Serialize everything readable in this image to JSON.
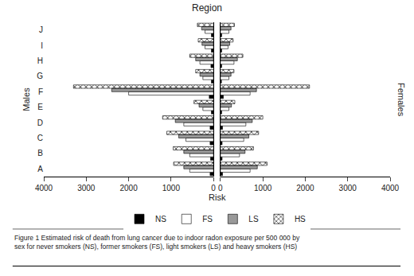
{
  "chart_data": {
    "type": "bar",
    "orientation": "horizontal",
    "title": "Region",
    "x_label": "Risk",
    "left_label": "Males",
    "right_label": "Females",
    "caption": "Figure 1 Estimated risk of death from lung cancer due to indoor radon exposure per 500 000 by\nsex for never smokers (NS), former smokers (FS), light smokers (LS) and heavy smokers (HS)",
    "categories": [
      "A",
      "B",
      "C",
      "D",
      "E",
      "F",
      "G",
      "H",
      "I",
      "J"
    ],
    "xlim": [
      0,
      4000
    ],
    "xticks": [
      0,
      1000,
      2000,
      3000,
      4000
    ],
    "grid": false,
    "legend": "bottom",
    "series": [
      {
        "name": "NS",
        "color": "#000000",
        "males": [
          80,
          70,
          80,
          80,
          50,
          100,
          50,
          60,
          50,
          50
        ],
        "females": [
          50,
          40,
          40,
          50,
          30,
          70,
          25,
          30,
          30,
          30
        ]
      },
      {
        "name": "FS",
        "color": "#ffffff",
        "males": [
          560,
          560,
          650,
          700,
          250,
          2000,
          250,
          320,
          200,
          200
        ],
        "females": [
          700,
          450,
          550,
          600,
          200,
          700,
          200,
          320,
          180,
          200
        ]
      },
      {
        "name": "LS",
        "color": "#999999",
        "males": [
          700,
          700,
          820,
          900,
          340,
          2400,
          320,
          420,
          270,
          280
        ],
        "females": [
          870,
          580,
          670,
          750,
          260,
          850,
          250,
          400,
          220,
          250
        ]
      },
      {
        "name": "HS",
        "color": "#cccccc",
        "marker": "x",
        "males": [
          940,
          950,
          1100,
          1200,
          460,
          3300,
          420,
          560,
          360,
          380
        ],
        "females": [
          1100,
          780,
          900,
          1000,
          340,
          2100,
          320,
          530,
          300,
          330
        ]
      }
    ]
  }
}
